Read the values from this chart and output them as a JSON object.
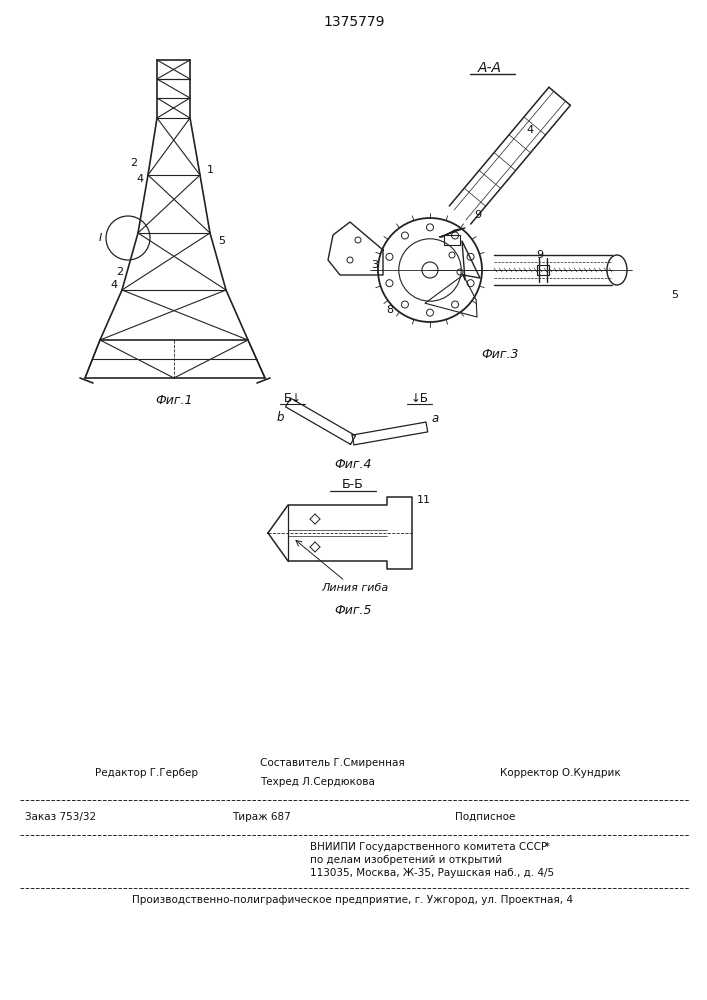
{
  "patent_number": "1375779",
  "fig1_caption": "Фиг.1",
  "fig3_caption": "Фиг.3",
  "fig4_caption": "Фиг.4",
  "fig5_caption": "Фиг.5",
  "section_AA": "А-А",
  "section_BB_label": "Б-Б",
  "section_B_left": "Б↓",
  "section_B_right": "↓Б",
  "label_b": "b",
  "label_a": "a",
  "label_11": "11",
  "label_liniya_giba": "Линия гиба",
  "footer_line1_col1": "Редактор Г.Гербер",
  "footer_line1_col2": "Составитель Г.Смиренная",
  "footer_line1_col3": "Корректор О.Кундрик",
  "footer_line2_col2": "Техред Л.Сердюкова",
  "footer_line3_col1": "Заказ 753/32",
  "footer_line3_col2": "Тираж 687",
  "footer_line3_col3": "Подписное",
  "footer_line4": "ВНИИПИ Государственного комитета СССР",
  "footer_star": "   *",
  "footer_line5": "по делам изобретений и открытий",
  "footer_line6": "113035, Москва, Ж-35, Раушская наб., д. 4/5",
  "footer_bottom": "Производственно-полиграфическое предприятие, г. Ужгород, ул. Проектная, 4",
  "bg_color": "#ffffff",
  "line_color": "#222222",
  "text_color": "#111111"
}
